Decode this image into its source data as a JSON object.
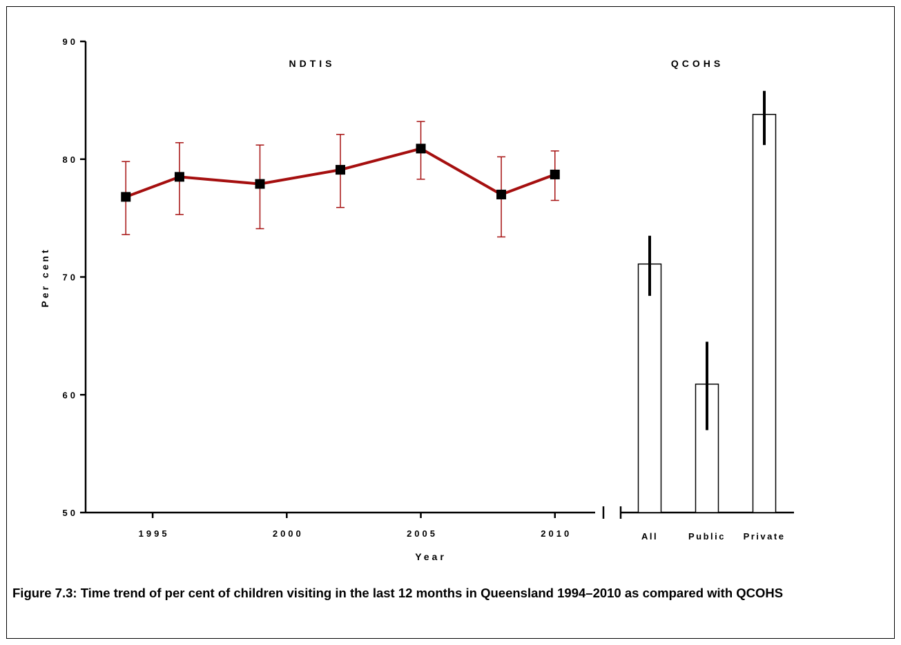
{
  "chart_data": [
    {
      "type": "line",
      "panel_title": "NDTIS",
      "xlabel": "Year",
      "ylabel": "Per cent",
      "ylim": [
        50,
        90
      ],
      "yticks": [
        50,
        60,
        70,
        80,
        90
      ],
      "xlim": [
        1992.5,
        2011.5
      ],
      "xticks": [
        1995,
        2000,
        2005,
        2010
      ],
      "x": [
        1994,
        1996,
        1999,
        2002,
        2005,
        2008,
        2010
      ],
      "values": [
        76.8,
        78.5,
        77.9,
        79.1,
        80.9,
        77.0,
        78.7
      ],
      "error_lower": [
        73.6,
        75.3,
        74.1,
        75.9,
        78.3,
        73.4,
        76.5
      ],
      "error_upper": [
        79.8,
        81.4,
        81.2,
        82.1,
        83.2,
        80.2,
        80.7
      ],
      "line_color": "#a50f0f",
      "marker_color": "#000000",
      "marker": "square"
    },
    {
      "type": "bar",
      "panel_title": "QCOHS",
      "categories": [
        "All",
        "Public",
        "Private"
      ],
      "values": [
        71.1,
        60.9,
        83.8
      ],
      "error_lower": [
        68.4,
        57.0,
        81.2
      ],
      "error_upper": [
        73.5,
        64.5,
        85.8
      ],
      "ylim": [
        50,
        90
      ],
      "bar_fill": "#ffffff",
      "bar_stroke": "#000000"
    }
  ],
  "caption": "Figure 7.3: Time trend of per cent of children visiting in the last 12 months in Queensland 1994–2010 as compared with QCOHS"
}
